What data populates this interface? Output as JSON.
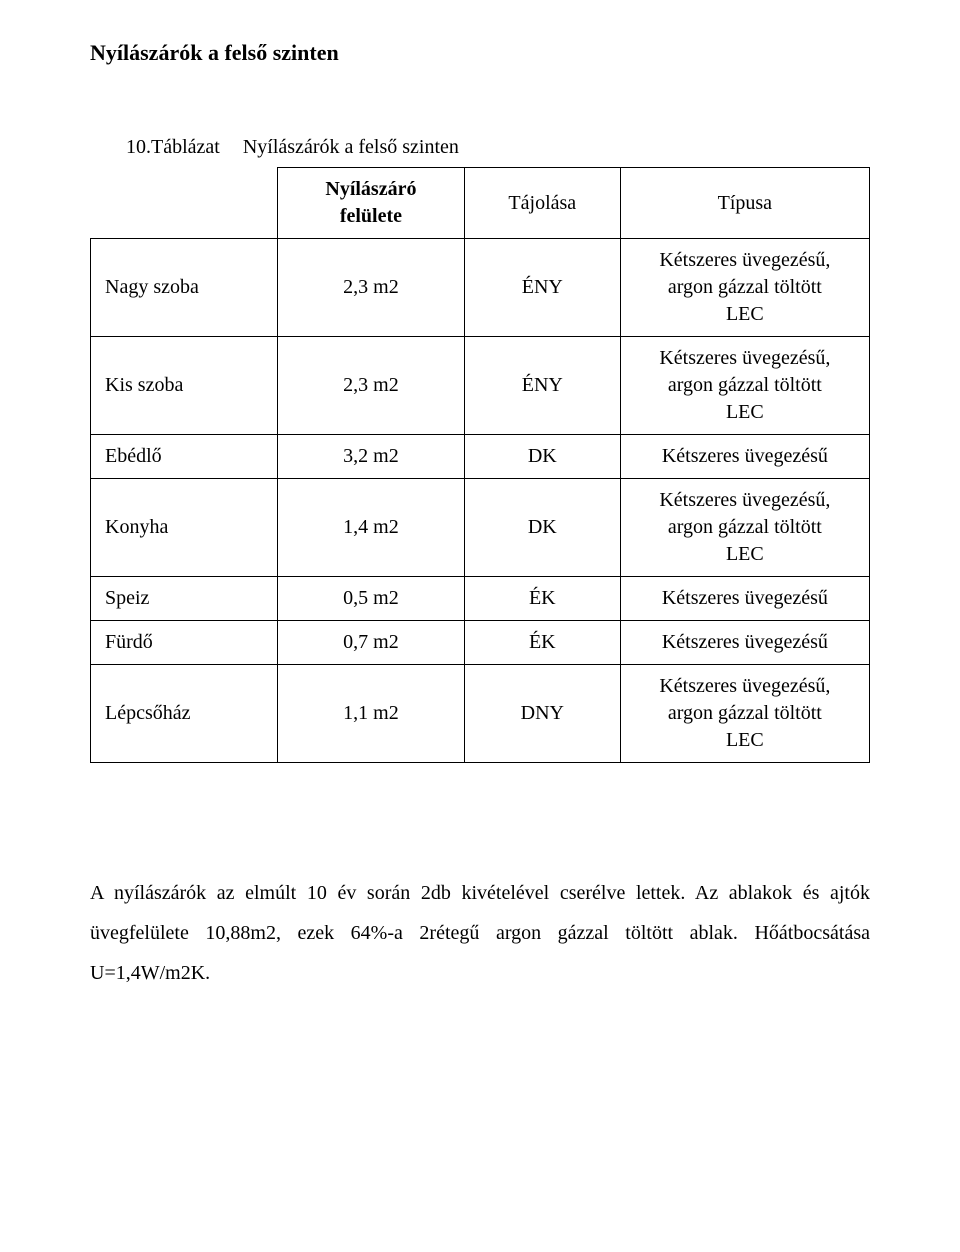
{
  "page": {
    "title": "Nyílászárók a felső szinten",
    "caption_number": "10.Táblázat",
    "caption_text": "Nyílászárók a felső szinten"
  },
  "headers": {
    "area_label_line1": "Nyílászáró",
    "area_label_line2": "felülete",
    "orientation": "Tájolása",
    "type": "Típusa"
  },
  "rows": [
    {
      "room": "Nagy szoba",
      "area": "2,3 m2",
      "orientation": "ÉNY",
      "type_l1": "Kétszeres üvegezésű,",
      "type_l2": "argon gázzal töltött",
      "type_l3": "LEC"
    },
    {
      "room": "Kis szoba",
      "area": "2,3 m2",
      "orientation": "ÉNY",
      "type_l1": "Kétszeres üvegezésű,",
      "type_l2": "argon gázzal töltött",
      "type_l3": "LEC"
    },
    {
      "room": "Ebédlő",
      "area": "3,2 m2",
      "orientation": "DK",
      "type_single": "Kétszeres üvegezésű"
    },
    {
      "room": "Konyha",
      "area": "1,4 m2",
      "orientation": "DK",
      "type_l1": "Kétszeres üvegezésű,",
      "type_l2": "argon gázzal töltött",
      "type_l3": "LEC"
    },
    {
      "room": "Speiz",
      "area": "0,5 m2",
      "orientation": "ÉK",
      "type_single": "Kétszeres üvegezésű"
    },
    {
      "room": "Fürdő",
      "area": "0,7 m2",
      "orientation": "ÉK",
      "type_single": "Kétszeres üvegezésű"
    },
    {
      "room": "Lépcsőház",
      "area": "1,1 m2",
      "orientation": "DNY",
      "type_l1": "Kétszeres üvegezésű,",
      "type_l2": "argon gázzal töltött",
      "type_l3": "LEC"
    }
  ],
  "body": {
    "text": "A nyílászárók az elmúlt 10 év során 2db kivételével cserélve lettek. Az ablakok és ajtók üvegfelülete 10,88m2, ezek 64%-a 2rétegű argon gázzal töltött ablak. Hőátbocsátása U=1,4W/m2K."
  }
}
